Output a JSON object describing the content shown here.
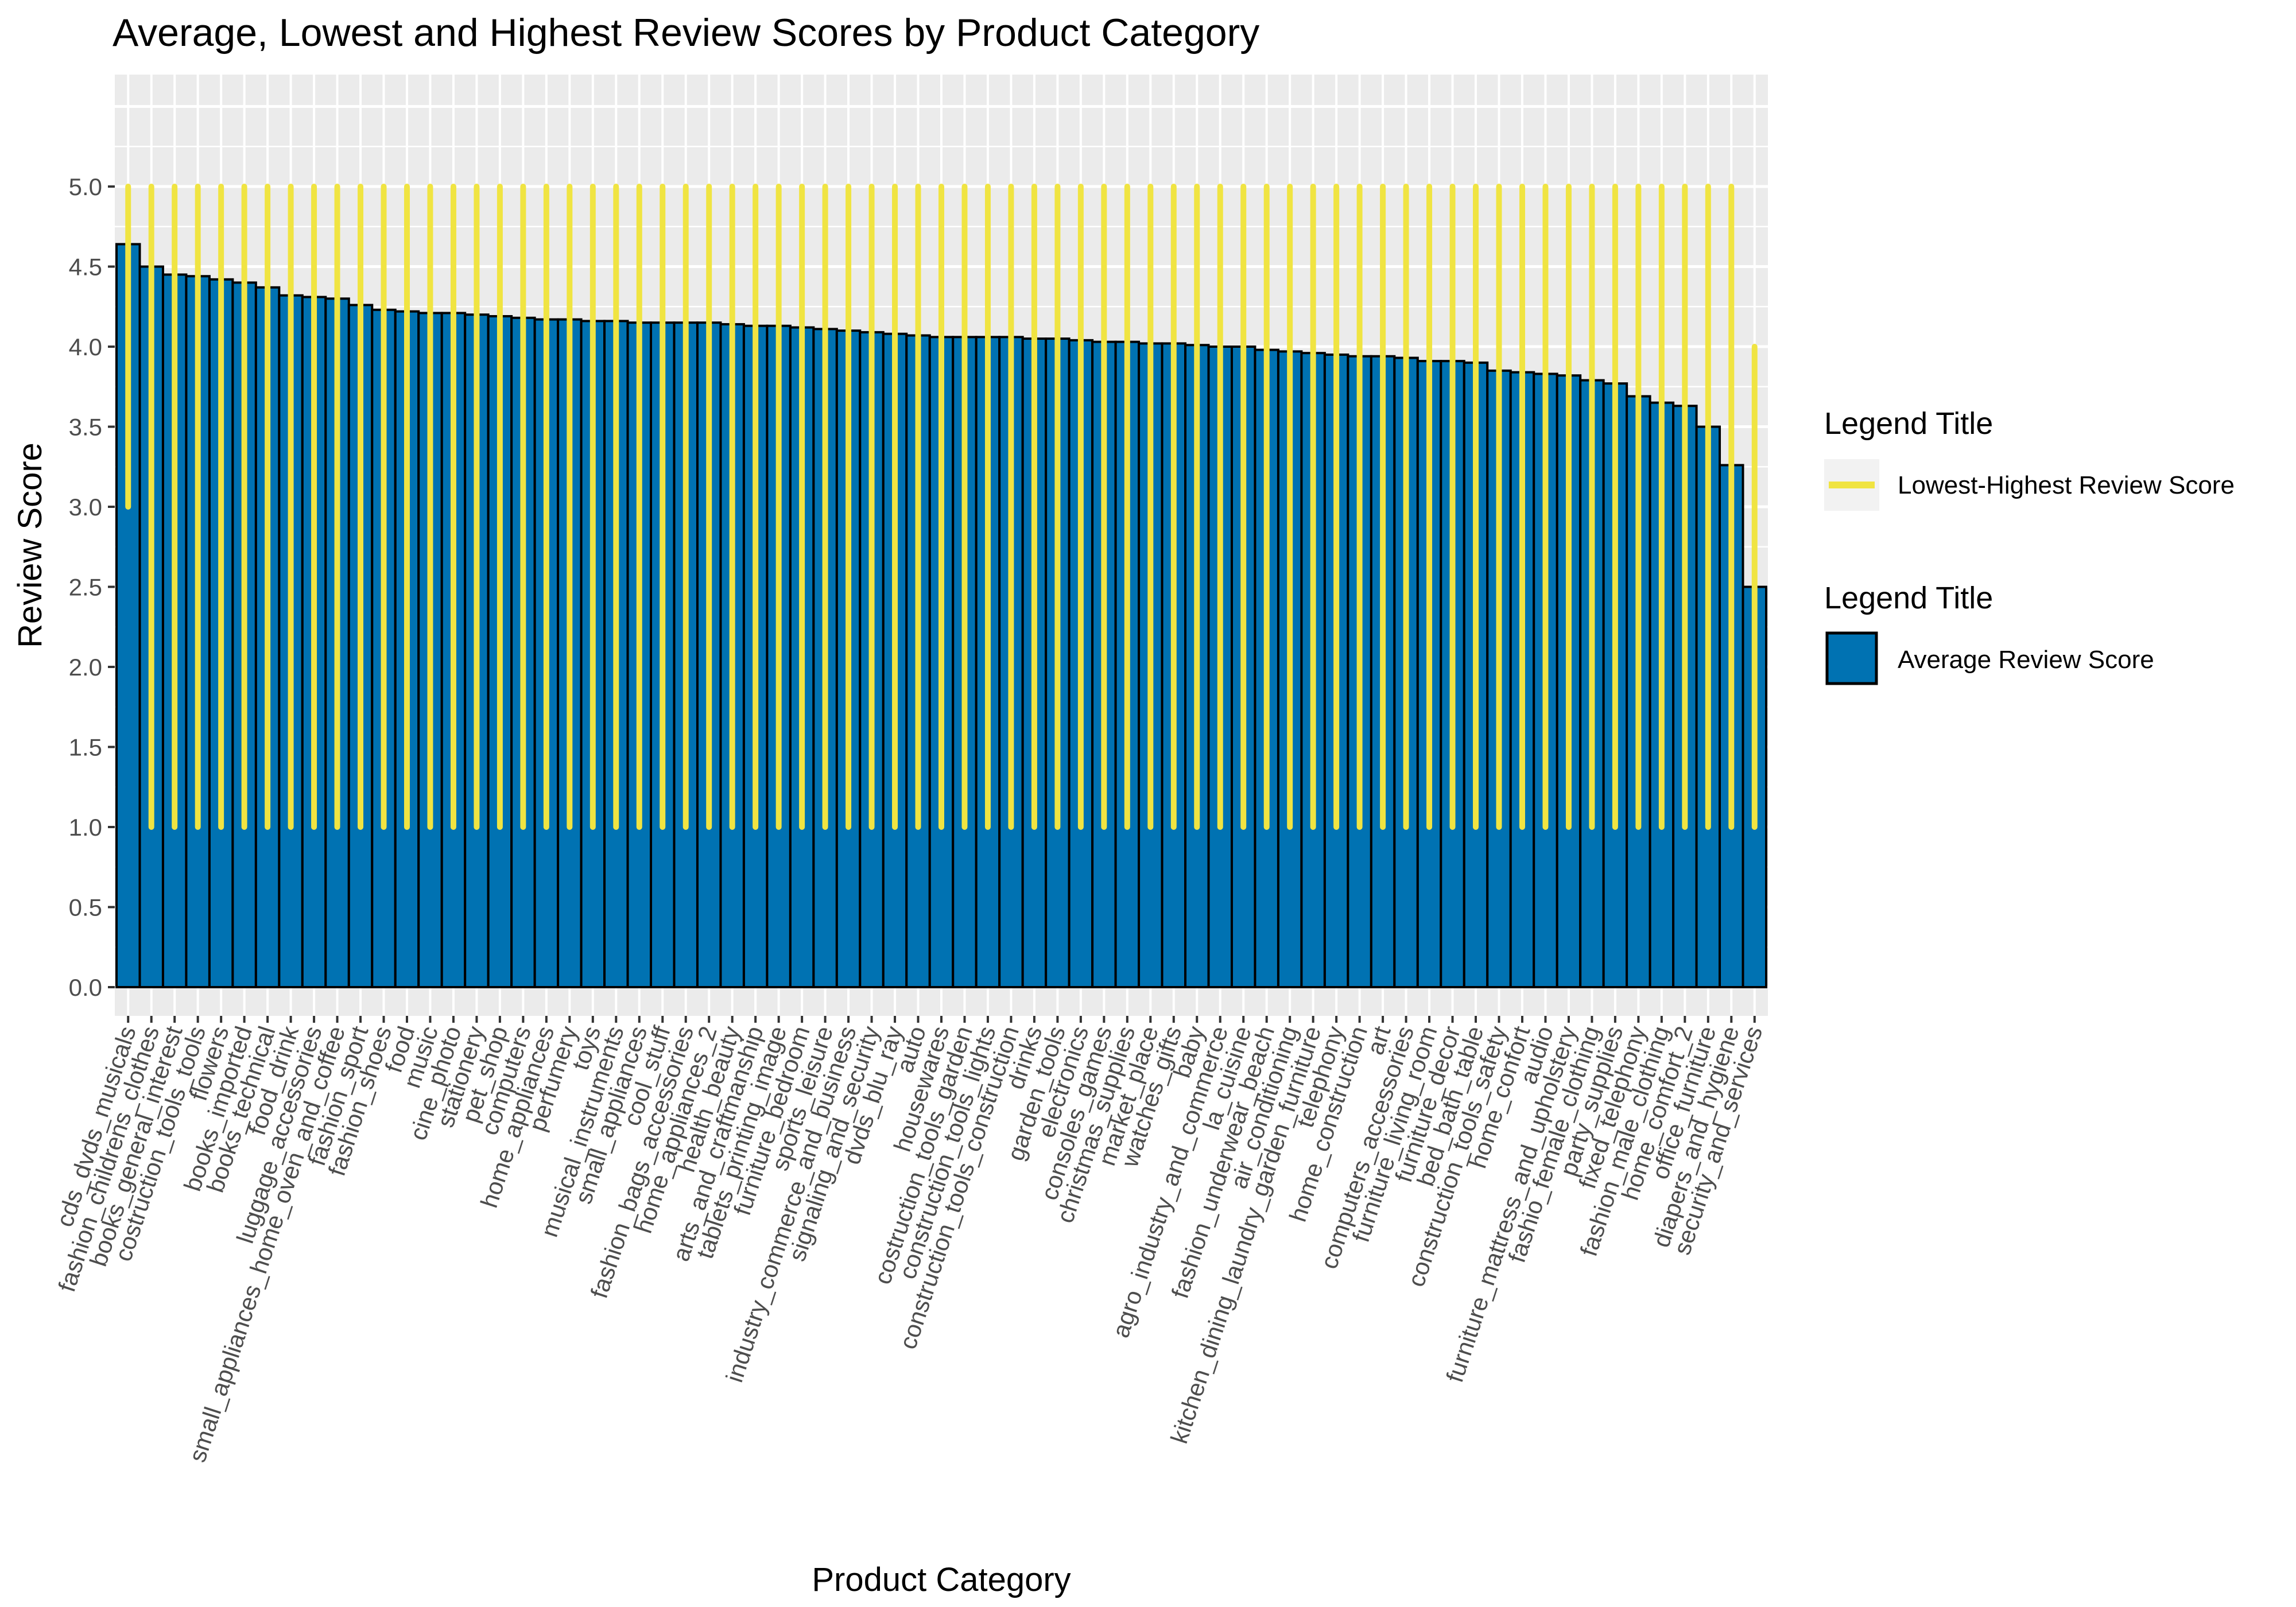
{
  "chart_data": {
    "type": "bar",
    "title": "Average, Lowest and Highest Review Scores by Product Category",
    "xlabel": "Product Category",
    "ylabel": "Review Score",
    "ylim": [
      0,
      5.5
    ],
    "yticks": [
      "0.0",
      "0.5",
      "1.0",
      "1.5",
      "2.0",
      "2.5",
      "3.0",
      "3.5",
      "4.0",
      "4.5",
      "5.0"
    ],
    "grid": true,
    "legend_placement": "right",
    "categories": [
      "cds_dvds_musicals",
      "fashion_childrens_clothes",
      "books_general_interest",
      "costruction_tools_tools",
      "flowers",
      "books_imported",
      "books_technical",
      "food_drink",
      "luggage_accessories",
      "small_appliances_home_oven_and_coffee",
      "fashion_sport",
      "fashion_shoes",
      "food",
      "music",
      "cine_photo",
      "stationery",
      "pet_shop",
      "computers",
      "home_appliances",
      "perfumery",
      "toys",
      "musical_instruments",
      "small_appliances",
      "cool_stuff",
      "fashion_bags_accessories",
      "home_appliances_2",
      "health_beauty",
      "arts_and_craftmanship",
      "tablets_printing_image",
      "furniture_bedroom",
      "sports_leisure",
      "industry_commerce_and_business",
      "signaling_and_security",
      "dvds_blu_ray",
      "auto",
      "housewares",
      "costruction_tools_garden",
      "construction_tools_lights",
      "construction_tools_construction",
      "drinks",
      "garden_tools",
      "electronics",
      "consoles_games",
      "christmas_supplies",
      "market_place",
      "watches_gifts",
      "baby",
      "agro_industry_and_commerce",
      "la_cuisine",
      "fashion_underwear_beach",
      "air_conditioning",
      "kitchen_dining_laundry_garden_furniture",
      "telephony",
      "home_construction",
      "art",
      "computers_accessories",
      "furniture_living_room",
      "furniture_decor",
      "bed_bath_table",
      "construction_tools_safety",
      "home_confort",
      "audio",
      "furniture_mattress_and_upholstery",
      "fashio_female_clothing",
      "party_supplies",
      "fixed_telephony",
      "fashion_male_clothing",
      "home_comfort_2",
      "office_furniture",
      "diapers_and_hygiene",
      "security_and_services"
    ],
    "series": [
      {
        "name": "Average Review Score",
        "values": [
          4.64,
          4.5,
          4.45,
          4.44,
          4.42,
          4.4,
          4.37,
          4.32,
          4.31,
          4.3,
          4.26,
          4.23,
          4.22,
          4.21,
          4.21,
          4.2,
          4.19,
          4.18,
          4.17,
          4.17,
          4.16,
          4.16,
          4.15,
          4.15,
          4.15,
          4.15,
          4.14,
          4.13,
          4.13,
          4.12,
          4.11,
          4.1,
          4.09,
          4.08,
          4.07,
          4.06,
          4.06,
          4.06,
          4.06,
          4.05,
          4.05,
          4.04,
          4.03,
          4.03,
          4.02,
          4.02,
          4.01,
          4.0,
          4.0,
          3.98,
          3.97,
          3.96,
          3.95,
          3.94,
          3.94,
          3.93,
          3.91,
          3.91,
          3.9,
          3.85,
          3.84,
          3.83,
          3.82,
          3.79,
          3.77,
          3.69,
          3.65,
          3.63,
          3.5,
          3.26,
          2.5
        ]
      },
      {
        "name": "Lowest Review Score",
        "values": [
          3,
          1,
          1,
          1,
          1,
          1,
          1,
          1,
          1,
          1,
          1,
          1,
          1,
          1,
          1,
          1,
          1,
          1,
          1,
          1,
          1,
          1,
          1,
          1,
          1,
          1,
          1,
          1,
          1,
          1,
          1,
          1,
          1,
          1,
          1,
          1,
          1,
          1,
          1,
          1,
          1,
          1,
          1,
          1,
          1,
          1,
          1,
          1,
          1,
          1,
          1,
          1,
          1,
          1,
          1,
          1,
          1,
          1,
          1,
          1,
          1,
          1,
          1,
          1,
          1,
          1,
          1,
          1,
          1,
          1,
          1
        ]
      },
      {
        "name": "Highest Review Score",
        "values": [
          5,
          5,
          5,
          5,
          5,
          5,
          5,
          5,
          5,
          5,
          5,
          5,
          5,
          5,
          5,
          5,
          5,
          5,
          5,
          5,
          5,
          5,
          5,
          5,
          5,
          5,
          5,
          5,
          5,
          5,
          5,
          5,
          5,
          5,
          5,
          5,
          5,
          5,
          5,
          5,
          5,
          5,
          5,
          5,
          5,
          5,
          5,
          5,
          5,
          5,
          5,
          5,
          5,
          5,
          5,
          5,
          5,
          5,
          5,
          5,
          5,
          5,
          5,
          5,
          5,
          5,
          5,
          5,
          5,
          5,
          4
        ]
      }
    ],
    "colors": {
      "bar": "#0072B2",
      "range": "#F0E442",
      "panel": "#EBEBEB",
      "grid": "#ffffff"
    },
    "legend": [
      {
        "title": "Legend Title",
        "label": "Lowest-Highest Review Score",
        "kind": "line"
      },
      {
        "title": "Legend Title",
        "label": "Average Review Score",
        "kind": "fill"
      }
    ]
  }
}
